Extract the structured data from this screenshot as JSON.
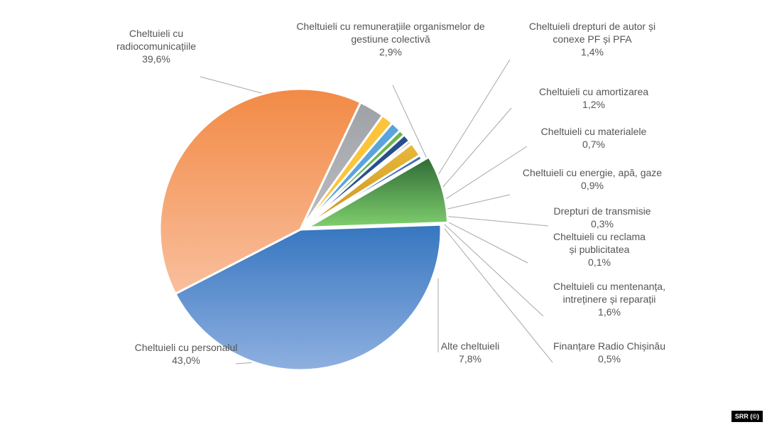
{
  "chart_data": {
    "type": "pie",
    "slices": [
      {
        "name": "Cheltuieli cu personalul",
        "label_lines": [
          "Cheltuieli cu personalul"
        ],
        "value_label": "43,0%",
        "value": 43.0,
        "color_top": "#3676c0",
        "color_bottom": "#8fb0e0"
      },
      {
        "name": "Cheltuieli cu radiocomunicațiile",
        "label_lines": [
          "Cheltuieli cu",
          "radiocomunicațiile"
        ],
        "value_label": "39,6%",
        "value": 39.6,
        "color_top": "#f28a45",
        "color_bottom": "#f9bf9d"
      },
      {
        "name": "Cheltuieli cu remunerațiile organismelor de gestiune colectivă",
        "label_lines": [
          "Cheltuieli cu remunerațiile organismelor de",
          "gestiune colectivă"
        ],
        "value_label": "2,9%",
        "value": 2.9,
        "color_top": "#9ea1a6",
        "color_bottom": "#bcbec2"
      },
      {
        "name": "Cheltuieli drepturi de autor și conexe PF și PFA",
        "label_lines": [
          "Cheltuieli drepturi de autor și",
          "conexe PF și PFA"
        ],
        "value_label": "1,4%",
        "value": 1.4,
        "color_top": "#fbc43a",
        "color_bottom": "#fbc43a"
      },
      {
        "name": "Cheltuieli cu amortizarea",
        "label_lines": [
          "Cheltuieli cu amortizarea"
        ],
        "value_label": "1,2%",
        "value": 1.2,
        "color_top": "#5ba3dd",
        "color_bottom": "#5ba3dd"
      },
      {
        "name": "Cheltuieli cu materialele",
        "label_lines": [
          "Cheltuieli cu materialele"
        ],
        "value_label": "0,7%",
        "value": 0.7,
        "color_top": "#6ab64c",
        "color_bottom": "#6ab64c"
      },
      {
        "name": "Cheltuieli cu energie, apă, gaze",
        "label_lines": [
          "Cheltuieli cu energie, apă, gaze"
        ],
        "value_label": "0,9%",
        "value": 0.9,
        "color_top": "#284f8c",
        "color_bottom": "#284f8c"
      },
      {
        "name": "Drepturi de transmisie",
        "label_lines": [
          "Drepturi de transmisie"
        ],
        "value_label": "0,3%",
        "value": 0.3,
        "color_top": "#8a6a1e",
        "color_bottom": "#8a6a1e"
      },
      {
        "name": "Cheltuieli cu reclama și publicitatea",
        "label_lines": [
          "Cheltuieli cu reclama",
          "și publicitatea"
        ],
        "value_label": "0,1%",
        "value": 0.1,
        "color_top": "#1f4d2a",
        "color_bottom": "#1f4d2a"
      },
      {
        "name": "Cheltuieli cu mentenanța, intreținere și reparații",
        "label_lines": [
          "Cheltuieli cu mentenanța,",
          "intreținere și reparații"
        ],
        "value_label": "1,6%",
        "value": 1.6,
        "color_top": "#e9b83a",
        "color_bottom": "#c99520"
      },
      {
        "name": "Finanțare Radio Chișinău",
        "label_lines": [
          "Finanțare Radio Chișinău"
        ],
        "value_label": "0,5%",
        "value": 0.5,
        "color_top": "#3d6eb4",
        "color_bottom": "#3d6eb4"
      },
      {
        "name": "Alte cheltuieli",
        "label_lines": [
          "Alte cheltuieli"
        ],
        "value_label": "7,8%",
        "value": 7.8,
        "color_top": "#2f6a35",
        "color_bottom": "#7fcf6e"
      }
    ],
    "legend": "none"
  },
  "credit": "SRR (©)"
}
